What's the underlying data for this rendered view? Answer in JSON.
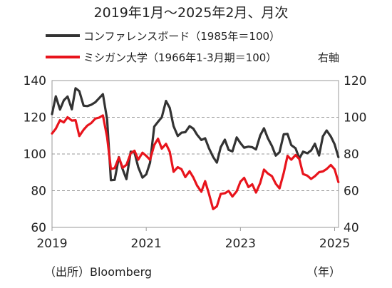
{
  "chart_data": {
    "type": "line",
    "title": "2019年1月～2025年2月、月次",
    "left_axis": {
      "ylim": [
        60,
        140
      ],
      "ticks": [
        "60",
        "80",
        "100",
        "120",
        "140"
      ]
    },
    "right_axis": {
      "ylim": [
        40,
        120
      ],
      "ticks": [
        "40",
        "60",
        "80",
        "100",
        "120"
      ],
      "label": "右軸"
    },
    "x_axis": {
      "xlim": [
        2019.0,
        2025.083
      ],
      "ticks": [
        "2019",
        "2021",
        "2023",
        "2025"
      ],
      "unit_label": "（年）"
    },
    "grid": "horizontal-dashed",
    "legend_position": "top-left",
    "source": "（出所）Bloomberg",
    "series": [
      {
        "name": "コンファレンスボード（1985年＝100）",
        "axis": "left",
        "color": "#333333",
        "x": [
          2019.0,
          2019.08,
          2019.17,
          2019.25,
          2019.33,
          2019.42,
          2019.5,
          2019.58,
          2019.67,
          2019.75,
          2019.83,
          2019.92,
          2020.0,
          2020.08,
          2020.17,
          2020.25,
          2020.33,
          2020.42,
          2020.5,
          2020.58,
          2020.67,
          2020.75,
          2020.83,
          2020.92,
          2021.0,
          2021.08,
          2021.17,
          2021.25,
          2021.33,
          2021.42,
          2021.5,
          2021.58,
          2021.67,
          2021.75,
          2021.83,
          2021.92,
          2022.0,
          2022.08,
          2022.17,
          2022.25,
          2022.33,
          2022.42,
          2022.5,
          2022.58,
          2022.67,
          2022.75,
          2022.83,
          2022.92,
          2023.0,
          2023.08,
          2023.17,
          2023.25,
          2023.33,
          2023.42,
          2023.5,
          2023.58,
          2023.67,
          2023.75,
          2023.83,
          2023.92,
          2024.0,
          2024.08,
          2024.17,
          2024.25,
          2024.33,
          2024.42,
          2024.5,
          2024.58,
          2024.67,
          2024.75,
          2024.83,
          2024.92,
          2025.0,
          2025.08
        ],
        "values": [
          121.7,
          131.4,
          124.2,
          129.2,
          131.3,
          124.3,
          135.8,
          134.2,
          126.3,
          126.1,
          126.8,
          128.2,
          130.4,
          132.6,
          118.8,
          85.7,
          85.9,
          98.3,
          91.7,
          86.3,
          101.3,
          100.9,
          92.9,
          87.1,
          88.9,
          95.2,
          114.9,
          117.5,
          120.0,
          128.9,
          125.1,
          115.2,
          109.8,
          111.6,
          111.9,
          115.2,
          113.8,
          110.5,
          107.6,
          108.6,
          103.2,
          98.4,
          95.3,
          103.6,
          107.8,
          102.2,
          101.4,
          109.0,
          106.0,
          103.4,
          104.0,
          103.7,
          102.5,
          110.1,
          114.0,
          108.7,
          104.3,
          99.1,
          101.0,
          110.7,
          110.9,
          104.8,
          103.1,
          97.5,
          101.3,
          100.4,
          101.9,
          105.6,
          99.2,
          109.6,
          112.8,
          109.5,
          105.3,
          98.3
        ]
      },
      {
        "name": "ミシガン大学（1966年1-3月期＝100）",
        "axis": "right",
        "color": "#e8141c",
        "x": [
          2019.0,
          2019.08,
          2019.17,
          2019.25,
          2019.33,
          2019.42,
          2019.5,
          2019.58,
          2019.67,
          2019.75,
          2019.83,
          2019.92,
          2020.0,
          2020.08,
          2020.17,
          2020.25,
          2020.33,
          2020.42,
          2020.5,
          2020.58,
          2020.67,
          2020.75,
          2020.83,
          2020.92,
          2021.0,
          2021.08,
          2021.17,
          2021.25,
          2021.33,
          2021.42,
          2021.5,
          2021.58,
          2021.67,
          2021.75,
          2021.83,
          2021.92,
          2022.0,
          2022.08,
          2022.17,
          2022.25,
          2022.33,
          2022.42,
          2022.5,
          2022.58,
          2022.67,
          2022.75,
          2022.83,
          2022.92,
          2023.0,
          2023.08,
          2023.17,
          2023.25,
          2023.33,
          2023.42,
          2023.5,
          2023.58,
          2023.67,
          2023.75,
          2023.83,
          2023.92,
          2024.0,
          2024.08,
          2024.17,
          2024.25,
          2024.33,
          2024.42,
          2024.5,
          2024.58,
          2024.67,
          2024.75,
          2024.83,
          2024.92,
          2025.0,
          2025.08
        ],
        "values": [
          91.2,
          93.8,
          98.4,
          97.2,
          100.0,
          98.2,
          98.4,
          89.8,
          93.2,
          95.5,
          96.8,
          99.3,
          99.8,
          101.0,
          89.1,
          71.8,
          72.3,
          78.1,
          72.5,
          74.1,
          80.4,
          81.8,
          76.9,
          80.7,
          79.0,
          76.8,
          84.9,
          88.3,
          82.9,
          85.5,
          81.2,
          70.3,
          72.8,
          71.7,
          67.4,
          70.6,
          67.2,
          62.8,
          59.4,
          65.2,
          58.4,
          50.0,
          51.5,
          58.2,
          58.6,
          59.9,
          56.8,
          59.7,
          64.9,
          67.0,
          62.0,
          63.5,
          59.0,
          64.2,
          71.5,
          69.4,
          67.9,
          63.8,
          61.3,
          69.7,
          79.0,
          76.9,
          79.4,
          77.2,
          69.1,
          68.2,
          66.4,
          67.9,
          70.1,
          70.5,
          71.8,
          74.0,
          71.7,
          64.7
        ]
      }
    ]
  }
}
